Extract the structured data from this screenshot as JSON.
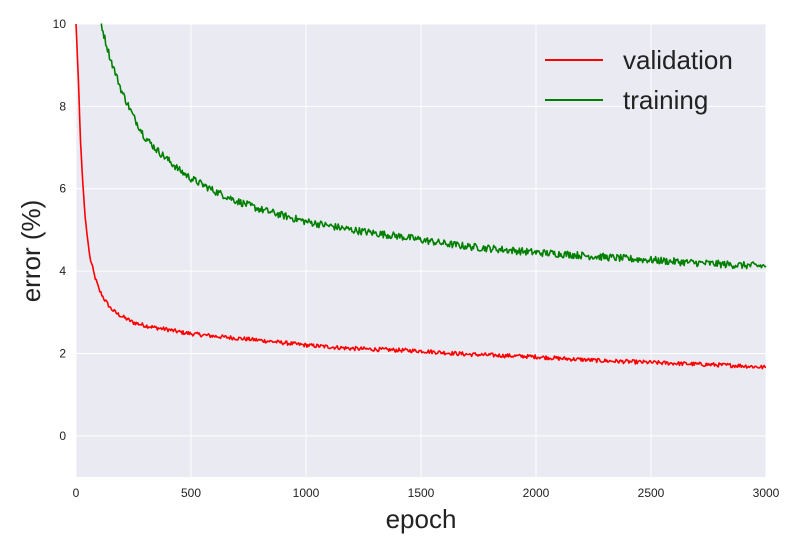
{
  "chart_data": {
    "type": "line",
    "title": "",
    "xlabel": "epoch",
    "ylabel": "error (%)",
    "xlim": [
      0,
      3000
    ],
    "ylim": [
      -1,
      10
    ],
    "xticks": [
      0,
      500,
      1000,
      1500,
      2000,
      2500,
      3000
    ],
    "yticks": [
      0,
      2,
      4,
      6,
      8,
      10
    ],
    "grid": true,
    "legend_position": "top-right",
    "colors": {
      "background": "#eaeaf2",
      "grid": "#ffffff"
    },
    "series": [
      {
        "name": "validation",
        "color": "#ff0000",
        "x": [
          0,
          10,
          20,
          30,
          40,
          50,
          60,
          80,
          100,
          125,
          150,
          175,
          200,
          250,
          300,
          350,
          400,
          450,
          500,
          600,
          700,
          800,
          900,
          1000,
          1100,
          1200,
          1300,
          1400,
          1500,
          1600,
          1700,
          1800,
          1900,
          2000,
          2100,
          2200,
          2300,
          2400,
          2500,
          2600,
          2700,
          2800,
          2900,
          3000
        ],
        "y": [
          10.0,
          8.7,
          7.1,
          6.1,
          5.3,
          4.8,
          4.35,
          3.9,
          3.55,
          3.3,
          3.1,
          2.98,
          2.9,
          2.75,
          2.68,
          2.62,
          2.58,
          2.52,
          2.48,
          2.42,
          2.37,
          2.32,
          2.26,
          2.2,
          2.16,
          2.12,
          2.1,
          2.08,
          2.06,
          2.02,
          1.98,
          1.96,
          1.94,
          1.92,
          1.88,
          1.85,
          1.82,
          1.8,
          1.78,
          1.76,
          1.74,
          1.72,
          1.7,
          1.66
        ]
      },
      {
        "name": "training",
        "color": "#008000",
        "x": [
          110,
          125,
          150,
          175,
          200,
          250,
          300,
          350,
          400,
          450,
          500,
          600,
          700,
          800,
          900,
          1000,
          1100,
          1200,
          1300,
          1400,
          1500,
          1600,
          1700,
          1800,
          1900,
          2000,
          2100,
          2200,
          2300,
          2400,
          2500,
          2600,
          2700,
          2800,
          2900,
          3000
        ],
        "y": [
          10.0,
          9.65,
          9.15,
          8.75,
          8.35,
          7.75,
          7.25,
          6.95,
          6.7,
          6.45,
          6.25,
          5.95,
          5.7,
          5.5,
          5.35,
          5.2,
          5.1,
          5.0,
          4.92,
          4.85,
          4.76,
          4.67,
          4.6,
          4.55,
          4.5,
          4.45,
          4.42,
          4.38,
          4.34,
          4.3,
          4.27,
          4.23,
          4.2,
          4.17,
          4.14,
          4.12
        ]
      }
    ]
  }
}
